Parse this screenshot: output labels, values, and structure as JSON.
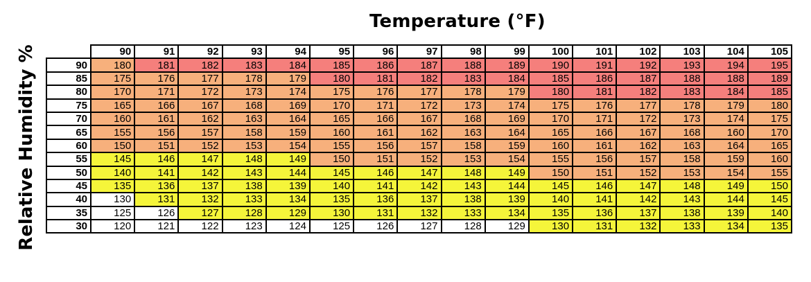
{
  "chart_data": {
    "type": "heatmap",
    "title": "Temperature (°F)",
    "ylabel": "Relative Humidity %",
    "x": [
      90,
      91,
      92,
      93,
      94,
      95,
      96,
      97,
      98,
      99,
      100,
      101,
      102,
      103,
      104,
      105
    ],
    "y": [
      90,
      85,
      80,
      75,
      70,
      65,
      60,
      55,
      50,
      45,
      40,
      35,
      30
    ],
    "values": [
      [
        180,
        181,
        182,
        183,
        184,
        185,
        186,
        187,
        188,
        189,
        190,
        191,
        192,
        193,
        194,
        195
      ],
      [
        175,
        176,
        177,
        178,
        179,
        180,
        181,
        182,
        183,
        184,
        185,
        186,
        187,
        188,
        188,
        189
      ],
      [
        170,
        171,
        172,
        173,
        174,
        175,
        176,
        177,
        178,
        179,
        180,
        181,
        182,
        183,
        184,
        185
      ],
      [
        165,
        166,
        167,
        168,
        169,
        170,
        171,
        172,
        173,
        174,
        175,
        176,
        177,
        178,
        179,
        180
      ],
      [
        160,
        161,
        162,
        163,
        164,
        165,
        166,
        167,
        168,
        169,
        170,
        171,
        172,
        173,
        174,
        175
      ],
      [
        155,
        156,
        157,
        158,
        159,
        160,
        161,
        162,
        163,
        164,
        165,
        166,
        167,
        168,
        160,
        170
      ],
      [
        150,
        151,
        152,
        153,
        154,
        155,
        156,
        157,
        158,
        159,
        160,
        161,
        162,
        163,
        164,
        165
      ],
      [
        145,
        146,
        147,
        148,
        149,
        150,
        151,
        152,
        153,
        154,
        155,
        156,
        157,
        158,
        159,
        160
      ],
      [
        140,
        141,
        142,
        143,
        144,
        145,
        146,
        147,
        148,
        149,
        150,
        151,
        152,
        153,
        154,
        155
      ],
      [
        135,
        136,
        137,
        138,
        139,
        140,
        141,
        142,
        143,
        144,
        145,
        146,
        147,
        148,
        149,
        150
      ],
      [
        130,
        131,
        132,
        133,
        134,
        135,
        136,
        137,
        138,
        139,
        140,
        141,
        142,
        143,
        144,
        145
      ],
      [
        125,
        126,
        127,
        128,
        129,
        130,
        131,
        132,
        133,
        134,
        135,
        136,
        137,
        138,
        139,
        140
      ],
      [
        120,
        121,
        122,
        123,
        124,
        125,
        126,
        127,
        128,
        129,
        130,
        131,
        132,
        133,
        134,
        135
      ]
    ],
    "color_levels": [
      [
        0,
        2,
        2,
        2,
        2,
        2,
        2,
        2,
        2,
        2,
        2,
        2,
        2,
        2,
        2,
        2
      ],
      [
        0,
        0,
        0,
        0,
        0,
        2,
        2,
        2,
        2,
        2,
        2,
        2,
        2,
        2,
        2,
        2
      ],
      [
        0,
        0,
        0,
        0,
        0,
        0,
        0,
        0,
        0,
        0,
        2,
        2,
        2,
        2,
        2,
        2
      ],
      [
        0,
        0,
        0,
        0,
        0,
        0,
        0,
        0,
        0,
        0,
        0,
        0,
        0,
        0,
        0,
        0
      ],
      [
        0,
        0,
        0,
        0,
        0,
        0,
        0,
        0,
        0,
        0,
        0,
        0,
        0,
        0,
        0,
        0
      ],
      [
        0,
        0,
        0,
        0,
        0,
        0,
        0,
        0,
        0,
        0,
        0,
        0,
        0,
        0,
        0,
        0
      ],
      [
        0,
        0,
        0,
        0,
        0,
        0,
        0,
        0,
        0,
        0,
        0,
        0,
        0,
        0,
        0,
        0
      ],
      [
        1,
        1,
        1,
        1,
        1,
        0,
        0,
        0,
        0,
        0,
        0,
        0,
        0,
        0,
        0,
        0
      ],
      [
        1,
        1,
        1,
        1,
        1,
        1,
        1,
        1,
        1,
        1,
        0,
        0,
        0,
        0,
        0,
        0
      ],
      [
        1,
        1,
        1,
        1,
        1,
        1,
        1,
        1,
        1,
        1,
        1,
        1,
        1,
        1,
        1,
        1
      ],
      [
        3,
        1,
        1,
        1,
        1,
        1,
        1,
        1,
        1,
        1,
        1,
        1,
        1,
        1,
        1,
        1
      ],
      [
        3,
        3,
        1,
        1,
        1,
        1,
        1,
        1,
        1,
        1,
        1,
        1,
        1,
        1,
        1,
        1
      ],
      [
        3,
        3,
        3,
        3,
        3,
        3,
        3,
        3,
        3,
        3,
        1,
        1,
        1,
        1,
        1,
        1
      ]
    ],
    "colors": [
      "#f7b07c",
      "#f5f53a",
      "#f57f7c",
      "#ffffff"
    ]
  }
}
